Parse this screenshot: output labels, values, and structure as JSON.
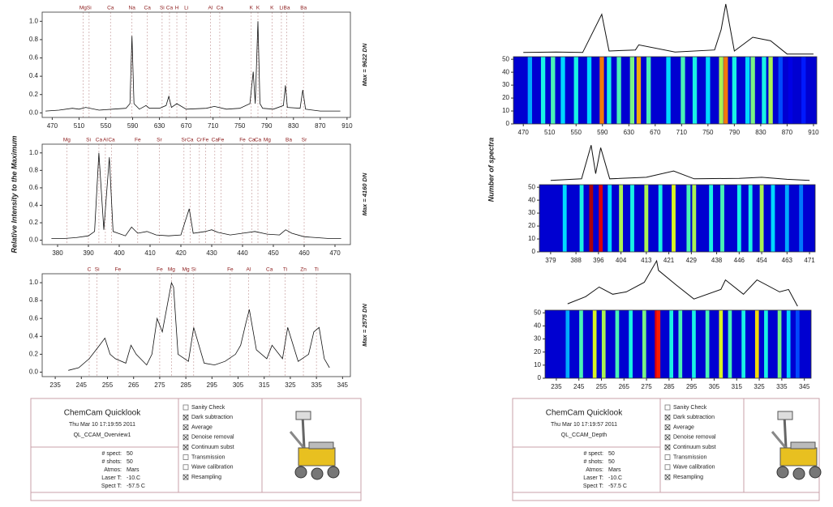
{
  "chart_data": [
    {
      "type": "line",
      "color": "#111111",
      "annotation_color": "#8b1a1a",
      "x": [
        460,
        480,
        500,
        510,
        520,
        540,
        560,
        580,
        586,
        589,
        592,
        600,
        610,
        615,
        630,
        640,
        644,
        648,
        656,
        670,
        700,
        712,
        730,
        750,
        765,
        770,
        773,
        777,
        780,
        784,
        800,
        815,
        818,
        821,
        840,
        844,
        848,
        870,
        900
      ],
      "values": [
        0.02,
        0.03,
        0.05,
        0.04,
        0.06,
        0.03,
        0.04,
        0.05,
        0.1,
        0.84,
        0.1,
        0.04,
        0.08,
        0.05,
        0.05,
        0.08,
        0.18,
        0.06,
        0.1,
        0.04,
        0.05,
        0.07,
        0.04,
        0.05,
        0.1,
        0.45,
        0.1,
        1.0,
        0.1,
        0.05,
        0.04,
        0.08,
        0.3,
        0.06,
        0.05,
        0.25,
        0.04,
        0.02,
        0.02
      ],
      "xlim": [
        455,
        915
      ],
      "xticks": [
        470,
        510,
        550,
        590,
        630,
        670,
        710,
        750,
        790,
        830,
        870,
        910
      ],
      "ylim": [
        -0.05,
        1.1
      ],
      "yticks": [
        {
          "value": 0,
          "label": "0.0"
        },
        0.2,
        0.4,
        0.6,
        0.8,
        {
          "value": 1,
          "label": "1.0"
        }
      ],
      "side_label": "Max = 9622 DN",
      "peak_labels": [
        {
          "label": "Mg",
          "x": 516
        },
        {
          "label": "Si",
          "x": 525
        },
        {
          "label": "Ca",
          "x": 557
        },
        {
          "label": "Na",
          "x": 589
        },
        {
          "label": "Ca",
          "x": 612
        },
        {
          "label": "Si",
          "x": 634
        },
        {
          "label": "Ca",
          "x": 645
        },
        {
          "label": "H",
          "x": 656
        },
        {
          "label": "Li",
          "x": 670
        },
        {
          "label": "Al",
          "x": 706
        },
        {
          "label": "Ca",
          "x": 720
        },
        {
          "label": "K",
          "x": 767
        },
        {
          "label": "K",
          "x": 777
        },
        {
          "label": "K",
          "x": 798
        },
        {
          "label": "Li",
          "x": 812
        },
        {
          "label": "Ba",
          "x": 820
        },
        {
          "label": "Ba",
          "x": 845
        }
      ]
    },
    {
      "type": "line",
      "color": "#111111",
      "annotation_color": "#8b1a1a",
      "x": [
        378,
        382,
        386,
        390,
        392,
        393.4,
        395,
        396.8,
        398,
        402,
        404,
        406,
        409,
        412,
        416,
        420,
        422.7,
        424,
        428,
        430,
        432,
        436,
        440,
        444,
        448,
        452,
        454,
        456,
        460,
        464,
        468,
        472
      ],
      "values": [
        0.02,
        0.02,
        0.03,
        0.05,
        0.1,
        1.0,
        0.12,
        0.95,
        0.1,
        0.05,
        0.15,
        0.08,
        0.1,
        0.06,
        0.05,
        0.06,
        0.36,
        0.08,
        0.1,
        0.12,
        0.09,
        0.06,
        0.08,
        0.1,
        0.07,
        0.06,
        0.12,
        0.08,
        0.04,
        0.03,
        0.02,
        0.02
      ],
      "xlim": [
        375,
        475
      ],
      "xticks": [
        380,
        390,
        400,
        410,
        420,
        430,
        440,
        450,
        460,
        470
      ],
      "ylim": [
        -0.05,
        1.1
      ],
      "yticks": [
        {
          "value": 0,
          "label": "0.0"
        },
        0.2,
        0.4,
        0.6,
        0.8,
        {
          "value": 1,
          "label": "1.0"
        }
      ],
      "ylabel": "Relative Intensity to the Maximum",
      "side_label": "Max = 4160 DN",
      "peak_labels": [
        {
          "label": "Mg",
          "x": 383
        },
        {
          "label": "Si",
          "x": 390
        },
        {
          "label": "Ca",
          "x": 393.4
        },
        {
          "label": "Al",
          "x": 395.5
        },
        {
          "label": "Ca",
          "x": 397.5
        },
        {
          "label": "Fe",
          "x": 406
        },
        {
          "label": "Sr",
          "x": 413
        },
        {
          "label": "Sr",
          "x": 421
        },
        {
          "label": "Ca",
          "x": 423
        },
        {
          "label": "Cr",
          "x": 426
        },
        {
          "label": "Fe",
          "x": 428
        },
        {
          "label": "Ca",
          "x": 431
        },
        {
          "label": "Fe",
          "x": 433
        },
        {
          "label": "Fe",
          "x": 440
        },
        {
          "label": "Ca",
          "x": 443
        },
        {
          "label": "Ca",
          "x": 445
        },
        {
          "label": "Mg",
          "x": 448
        },
        {
          "label": "Ba",
          "x": 455
        },
        {
          "label": "Sr",
          "x": 460
        }
      ]
    },
    {
      "type": "line",
      "color": "#111111",
      "annotation_color": "#8b1a1a",
      "x": [
        240,
        244,
        248,
        252,
        254,
        256,
        258,
        262,
        264,
        266,
        270,
        272,
        274,
        276,
        279.5,
        280.3,
        282,
        286,
        288,
        292,
        296,
        300,
        304,
        306,
        308,
        309.3,
        312,
        316,
        318,
        322,
        324,
        328,
        332,
        334,
        336,
        338,
        340
      ],
      "values": [
        0.02,
        0.05,
        0.15,
        0.3,
        0.38,
        0.2,
        0.15,
        0.1,
        0.3,
        0.2,
        0.08,
        0.2,
        0.6,
        0.45,
        1.0,
        0.95,
        0.2,
        0.12,
        0.5,
        0.1,
        0.08,
        0.12,
        0.2,
        0.3,
        0.55,
        0.7,
        0.25,
        0.15,
        0.3,
        0.15,
        0.5,
        0.12,
        0.2,
        0.45,
        0.5,
        0.15,
        0.05
      ],
      "xlim": [
        230,
        348
      ],
      "xticks": [
        235,
        245,
        255,
        265,
        275,
        285,
        295,
        305,
        315,
        325,
        335,
        345
      ],
      "ylim": [
        -0.05,
        1.1
      ],
      "yticks": [
        {
          "value": 0,
          "label": "0.0"
        },
        0.2,
        0.4,
        0.6,
        0.8,
        {
          "value": 1,
          "label": "1.0"
        }
      ],
      "side_label": "Max = 2575 DN",
      "peak_labels": [
        {
          "label": "C",
          "x": 248
        },
        {
          "label": "Si",
          "x": 251
        },
        {
          "label": "Fe",
          "x": 259
        },
        {
          "label": "Fe",
          "x": 275
        },
        {
          "label": "Mg",
          "x": 279.5
        },
        {
          "label": "Mg",
          "x": 285
        },
        {
          "label": "Si",
          "x": 288
        },
        {
          "label": "Fe",
          "x": 302
        },
        {
          "label": "Al",
          "x": 309
        },
        {
          "label": "Ca",
          "x": 317
        },
        {
          "label": "Ti",
          "x": 323
        },
        {
          "label": "Zn",
          "x": 330
        },
        {
          "label": "Ti",
          "x": 335
        }
      ]
    },
    {
      "type": "heatmap",
      "color": "#111111",
      "x": [
        480,
        500,
        515,
        530,
        550,
        570,
        589,
        600,
        615,
        635,
        645,
        660,
        690,
        712,
        730,
        750,
        770,
        777,
        790,
        810,
        818,
        835,
        845,
        860,
        875,
        895
      ],
      "values": [
        0.3,
        0.4,
        0.45,
        0.35,
        0.4,
        0.35,
        0.75,
        0.4,
        0.45,
        0.5,
        0.7,
        0.45,
        0.35,
        0.45,
        0.4,
        0.35,
        0.55,
        0.75,
        0.4,
        0.35,
        0.5,
        0.4,
        0.55,
        0.2,
        0.1,
        0.15
      ],
      "spectrum_x": [
        470,
        520,
        560,
        589,
        600,
        640,
        645,
        700,
        760,
        770,
        777,
        790,
        818,
        845,
        870,
        910
      ],
      "spectrum_values": [
        0.05,
        0.06,
        0.05,
        0.8,
        0.08,
        0.1,
        0.2,
        0.06,
        0.1,
        0.5,
        1.0,
        0.08,
        0.35,
        0.28,
        0.02,
        0.02
      ],
      "spectrum_ylim": [
        0,
        1
      ],
      "xlim": [
        455,
        915
      ],
      "xticks": [
        470,
        510,
        550,
        590,
        630,
        670,
        710,
        750,
        790,
        830,
        870,
        910
      ],
      "ylim": [
        0,
        52
      ],
      "yticks": [
        0,
        10,
        20,
        30,
        40,
        50
      ]
    },
    {
      "type": "heatmap",
      "color": "#111111",
      "x": [
        384,
        390,
        393.4,
        396.8,
        400,
        404,
        408,
        413,
        418,
        422.7,
        428,
        430,
        436,
        440,
        446,
        450,
        454,
        458,
        463,
        468
      ],
      "values": [
        0.35,
        0.4,
        0.95,
        0.9,
        0.35,
        0.55,
        0.4,
        0.55,
        0.4,
        0.6,
        0.45,
        0.55,
        0.4,
        0.45,
        0.4,
        0.4,
        0.55,
        0.35,
        0.3,
        0.25
      ],
      "spectrum_x": [
        379,
        390,
        393.4,
        395,
        396.8,
        400,
        413,
        422.7,
        430,
        446,
        454,
        463,
        471
      ],
      "spectrum_values": [
        0.02,
        0.05,
        0.7,
        0.15,
        0.65,
        0.05,
        0.08,
        0.2,
        0.05,
        0.06,
        0.08,
        0.04,
        0.02
      ],
      "spectrum_ylim": [
        0,
        1
      ],
      "xlim": [
        375,
        473
      ],
      "xticks": [
        379,
        388,
        396,
        404,
        413,
        421,
        429,
        438,
        446,
        454,
        463,
        471
      ],
      "ylim": [
        0,
        52
      ],
      "yticks": [
        0,
        10,
        20,
        30,
        40,
        50
      ],
      "ylabel": "Number of spectra"
    },
    {
      "type": "heatmap",
      "color": "#111111",
      "x": [
        240,
        246,
        252,
        256,
        262,
        268,
        274,
        279.5,
        280.3,
        286,
        290,
        296,
        302,
        308,
        312,
        318,
        324,
        328,
        334,
        338,
        342
      ],
      "values": [
        0.3,
        0.45,
        0.6,
        0.55,
        0.45,
        0.4,
        0.5,
        0.9,
        0.85,
        0.4,
        0.45,
        0.4,
        0.45,
        0.6,
        0.45,
        0.4,
        0.65,
        0.4,
        0.5,
        0.35,
        0.2
      ],
      "spectrum_x": [
        240,
        248,
        254,
        260,
        266,
        274,
        279.5,
        280.3,
        288,
        296,
        308,
        310,
        318,
        324,
        334,
        338,
        342
      ],
      "spectrum_values": [
        0.1,
        0.25,
        0.45,
        0.3,
        0.35,
        0.55,
        1.0,
        0.8,
        0.5,
        0.2,
        0.4,
        0.6,
        0.3,
        0.6,
        0.35,
        0.4,
        0.05
      ],
      "spectrum_ylim": [
        0,
        1
      ],
      "xlim": [
        230,
        348
      ],
      "xticks": [
        235,
        245,
        255,
        265,
        275,
        285,
        295,
        305,
        315,
        325,
        335,
        345
      ],
      "ylim": [
        0,
        52
      ],
      "yticks": [
        0,
        10,
        20,
        30,
        40,
        50
      ]
    }
  ],
  "panels": [
    {
      "title": "ChemCam Quicklook",
      "date": "Thu Mar 10 17:19:55 2011",
      "name": "QL_CCAM_Overview1",
      "params": [
        {
          "label": "# spect:",
          "value": "50"
        },
        {
          "label": "# shots:",
          "value": "50"
        },
        {
          "label": "Atmos:",
          "value": "Mars"
        },
        {
          "label": "Laser T:",
          "value": "-10.C"
        },
        {
          "label": "Spect T:",
          "value": "-57.5 C"
        }
      ],
      "checklist": [
        {
          "label": "Sanity Check",
          "checked": false
        },
        {
          "label": "Dark subtraction",
          "checked": true
        },
        {
          "label": "Average",
          "checked": true
        },
        {
          "label": "Denoise removal",
          "checked": true
        },
        {
          "label": "Continuum subst",
          "checked": true
        },
        {
          "label": "Transmission",
          "checked": false
        },
        {
          "label": "Wave calibration",
          "checked": false
        },
        {
          "label": "Resampling",
          "checked": true
        }
      ]
    },
    {
      "title": "ChemCam Quicklook",
      "date": "Thu Mar 10 17:19:57 2011",
      "name": "QL_CCAM_Depth",
      "params": [
        {
          "label": "# spect:",
          "value": "50"
        },
        {
          "label": "# shots:",
          "value": "50"
        },
        {
          "label": "Atmos:",
          "value": "Mars"
        },
        {
          "label": "Laser T:",
          "value": "-10.C"
        },
        {
          "label": "Spect T:",
          "value": "-57.5 C"
        }
      ],
      "checklist": [
        {
          "label": "Sanity Check",
          "checked": false
        },
        {
          "label": "Dark subtraction",
          "checked": true
        },
        {
          "label": "Average",
          "checked": true
        },
        {
          "label": "Denoise removal",
          "checked": true
        },
        {
          "label": "Continuum subst",
          "checked": true
        },
        {
          "label": "Transmission",
          "checked": false
        },
        {
          "label": "Wave calibration",
          "checked": false
        },
        {
          "label": "Resampling",
          "checked": true
        }
      ]
    }
  ]
}
